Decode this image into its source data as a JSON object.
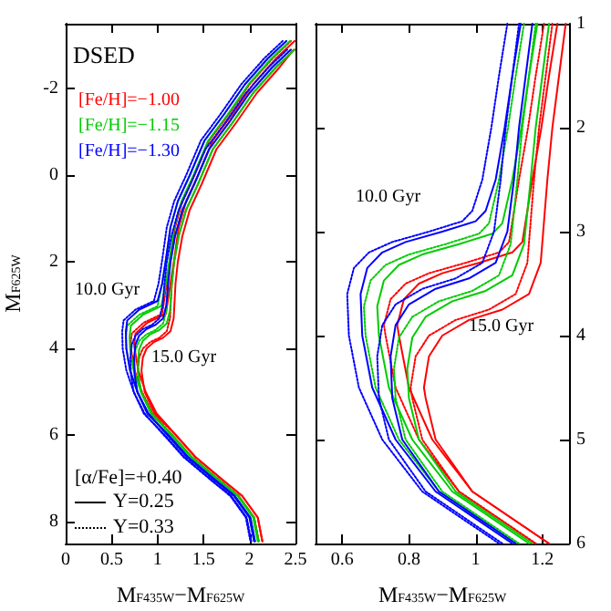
{
  "chart_data": [
    {
      "type": "line",
      "xlabel": "M$_{F435W}$−M$_{F625W}$",
      "ylabel": "M$_{F625W}$",
      "xlim": [
        0,
        2.5
      ],
      "xticks": [
        0,
        0.5,
        1,
        1.5,
        2,
        2.5
      ],
      "ylim": [
        8.5,
        -3.5
      ],
      "yticks": [
        -2,
        0,
        2,
        4,
        6,
        8
      ],
      "legend": "top left",
      "marker": "none",
      "annotations": [
        "DSED",
        "10.0 Gyr",
        "15.0 Gyr",
        "[α/Fe]=+0.40",
        "Y=0.25",
        "Y=0.33"
      ],
      "series": [
        {
          "name": "[Fe/H]=−1.00",
          "color": "#ff0000",
          "line_style": "solid",
          "x": [
            2.49,
            2.29,
            2.04,
            1.81,
            1.6,
            1.44,
            1.31,
            1.23,
            1.18,
            1.14,
            1.09,
            0.89,
            0.76,
            0.745,
            0.75,
            0.79,
            0.87,
            0.99,
            1.2,
            1.41,
            1.69,
            1.92,
            2.09,
            2.14
          ],
          "values": [
            -3.1,
            -2.7,
            -2.1,
            -1.4,
            -0.8,
            0,
            0.6,
            1.2,
            1.95,
            2.5,
            3.2,
            3.4,
            3.65,
            3.9,
            4.0,
            4.5,
            5.0,
            5.5,
            6.0,
            6.5,
            7.0,
            7.4,
            7.9,
            8.45
          ]
        },
        {
          "color": "#ff0000",
          "line_style": "dotted",
          "x": [
            2.45,
            2.25,
            2.0,
            1.77,
            1.56,
            1.4,
            1.27,
            1.19,
            1.14,
            1.1,
            1.05,
            0.85,
            0.72,
            0.705,
            0.71,
            0.75,
            0.83,
            0.95,
            1.16,
            1.37,
            1.65,
            1.88,
            2.05,
            2.1
          ],
          "values": [
            -3.1,
            -2.7,
            -2.1,
            -1.4,
            -0.8,
            0,
            0.6,
            1.2,
            1.95,
            2.5,
            3.2,
            3.4,
            3.65,
            3.9,
            4.0,
            4.5,
            5.0,
            5.5,
            6.0,
            6.5,
            7.0,
            7.4,
            7.9,
            8.45
          ]
        },
        {
          "color": "#ff0000",
          "line_style": "solid",
          "x": [
            2.48,
            2.33,
            2.08,
            1.85,
            1.64,
            1.48,
            1.35,
            1.27,
            1.22,
            1.195,
            1.175,
            1.14,
            1.06,
            0.96,
            0.88,
            0.84,
            0.825,
            0.83,
            0.86,
            0.97,
            1.2,
            1.41,
            1.69,
            1.92,
            2.09,
            2.14
          ],
          "values": [
            -2.9,
            -2.5,
            -1.9,
            -1.2,
            -0.6,
            0.2,
            0.8,
            1.4,
            2.0,
            2.5,
            3.3,
            3.6,
            3.75,
            3.85,
            4.0,
            4.2,
            4.5,
            4.6,
            5.0,
            5.5,
            6.0,
            6.5,
            7.0,
            7.4,
            7.9,
            8.45
          ]
        },
        {
          "color": "#ff0000",
          "line_style": "dotted",
          "x": [
            2.49,
            2.29,
            2.04,
            1.81,
            1.6,
            1.44,
            1.31,
            1.23,
            1.18,
            1.155,
            1.135,
            1.1,
            1.02,
            0.92,
            0.84,
            0.8,
            0.785,
            0.79,
            0.82,
            0.93,
            1.16,
            1.37,
            1.65,
            1.88,
            2.05,
            2.1
          ],
          "values": [
            -2.9,
            -2.5,
            -1.9,
            -1.2,
            -0.6,
            0.2,
            0.8,
            1.4,
            2.0,
            2.5,
            3.3,
            3.6,
            3.75,
            3.85,
            4.0,
            4.2,
            4.5,
            4.6,
            5.0,
            5.5,
            6.0,
            6.5,
            7.0,
            7.4,
            7.9,
            8.45
          ]
        },
        {
          "name": "[Fe/H]=−1.15",
          "color": "#00cc00",
          "line_style": "solid",
          "x": [
            2.44,
            2.24,
            1.99,
            1.76,
            1.55,
            1.39,
            1.26,
            1.18,
            1.13,
            1.09,
            1.04,
            0.84,
            0.71,
            0.695,
            0.7,
            0.74,
            0.82,
            0.94,
            1.15,
            1.36,
            1.64,
            1.87,
            2.04,
            2.09
          ],
          "values": [
            -3.1,
            -2.7,
            -2.1,
            -1.4,
            -0.8,
            0,
            0.6,
            1.2,
            1.95,
            2.5,
            3.02,
            3.22,
            3.47,
            3.72,
            4.0,
            4.5,
            5.0,
            5.5,
            6.0,
            6.5,
            7.0,
            7.4,
            7.9,
            8.45
          ]
        },
        {
          "color": "#00cc00",
          "line_style": "dotted",
          "x": [
            2.4,
            2.2,
            1.95,
            1.72,
            1.51,
            1.35,
            1.22,
            1.14,
            1.09,
            1.05,
            1.0,
            0.8,
            0.67,
            0.655,
            0.66,
            0.7,
            0.78,
            0.9,
            1.11,
            1.32,
            1.6,
            1.83,
            2.0,
            2.05
          ],
          "values": [
            -3.1,
            -2.7,
            -2.1,
            -1.4,
            -0.8,
            0,
            0.6,
            1.2,
            1.95,
            2.5,
            3.02,
            3.22,
            3.47,
            3.72,
            4.0,
            4.5,
            5.0,
            5.5,
            6.0,
            6.5,
            7.0,
            7.4,
            7.9,
            8.45
          ]
        },
        {
          "color": "#00cc00",
          "line_style": "solid",
          "x": [
            2.49,
            2.29,
            2.04,
            1.81,
            1.6,
            1.44,
            1.31,
            1.23,
            1.18,
            1.155,
            1.135,
            1.1,
            1.02,
            0.92,
            0.84,
            0.8,
            0.785,
            0.79,
            0.82,
            0.93,
            1.16,
            1.37,
            1.65,
            1.88,
            2.05,
            2.1
          ],
          "values": [
            -2.9,
            -2.5,
            -1.9,
            -1.2,
            -0.6,
            0.2,
            0.8,
            1.4,
            2.0,
            2.5,
            3.12,
            3.42,
            3.57,
            3.67,
            3.82,
            4.02,
            4.32,
            4.6,
            5.0,
            5.5,
            6.0,
            6.5,
            7.0,
            7.4,
            7.9,
            8.45
          ]
        },
        {
          "color": "#00cc00",
          "line_style": "dotted",
          "x": [
            2.45,
            2.25,
            2.0,
            1.77,
            1.56,
            1.4,
            1.27,
            1.19,
            1.14,
            1.115,
            1.095,
            1.06,
            0.98,
            0.88,
            0.8,
            0.76,
            0.745,
            0.75,
            0.78,
            0.89,
            1.12,
            1.33,
            1.61,
            1.84,
            2.01,
            2.06
          ],
          "values": [
            -2.9,
            -2.5,
            -1.9,
            -1.2,
            -0.6,
            0.2,
            0.8,
            1.4,
            2.0,
            2.5,
            3.12,
            3.42,
            3.57,
            3.67,
            3.82,
            4.02,
            4.32,
            4.6,
            5.0,
            5.5,
            6.0,
            6.5,
            7.0,
            7.4,
            7.9,
            8.45
          ]
        },
        {
          "name": "[Fe/H]=−1.30",
          "color": "#0000ff",
          "line_style": "solid",
          "x": [
            2.4,
            2.2,
            1.95,
            1.72,
            1.51,
            1.35,
            1.22,
            1.14,
            1.09,
            1.05,
            1.0,
            0.8,
            0.67,
            0.655,
            0.66,
            0.7,
            0.78,
            0.9,
            1.11,
            1.32,
            1.6,
            1.83,
            2.0,
            2.05
          ],
          "values": [
            -3.1,
            -2.7,
            -2.1,
            -1.4,
            -0.8,
            0,
            0.6,
            1.2,
            1.95,
            2.5,
            2.9,
            3.1,
            3.35,
            3.6,
            4.0,
            4.5,
            5.0,
            5.5,
            6.0,
            6.5,
            7.0,
            7.4,
            7.9,
            8.45
          ]
        },
        {
          "color": "#0000ff",
          "line_style": "dotted",
          "x": [
            2.36,
            2.16,
            1.91,
            1.68,
            1.47,
            1.31,
            1.18,
            1.1,
            1.05,
            1.01,
            0.96,
            0.76,
            0.63,
            0.615,
            0.62,
            0.66,
            0.74,
            0.86,
            1.07,
            1.28,
            1.56,
            1.79,
            1.96,
            2.01
          ],
          "values": [
            -3.1,
            -2.7,
            -2.1,
            -1.4,
            -0.8,
            0,
            0.6,
            1.2,
            1.95,
            2.5,
            2.9,
            3.1,
            3.35,
            3.6,
            4.0,
            4.5,
            5.0,
            5.5,
            6.0,
            6.5,
            7.0,
            7.4,
            7.9,
            8.45
          ]
        },
        {
          "color": "#0000ff",
          "line_style": "solid",
          "x": [
            2.45,
            2.25,
            2.0,
            1.77,
            1.56,
            1.4,
            1.27,
            1.19,
            1.14,
            1.115,
            1.095,
            1.06,
            0.98,
            0.88,
            0.8,
            0.76,
            0.745,
            0.75,
            0.78,
            0.89,
            1.12,
            1.33,
            1.61,
            1.84,
            2.01,
            2.06
          ],
          "values": [
            -2.9,
            -2.5,
            -1.9,
            -1.2,
            -0.6,
            0.2,
            0.8,
            1.4,
            2.0,
            2.5,
            3.0,
            3.3,
            3.45,
            3.55,
            3.7,
            3.9,
            4.2,
            4.6,
            5.0,
            5.5,
            6.0,
            6.5,
            7.0,
            7.4,
            7.9,
            8.45
          ]
        },
        {
          "color": "#0000ff",
          "line_style": "dotted",
          "x": [
            2.41,
            2.21,
            1.96,
            1.73,
            1.52,
            1.36,
            1.23,
            1.15,
            1.1,
            1.075,
            1.055,
            1.02,
            0.94,
            0.84,
            0.76,
            0.72,
            0.705,
            0.71,
            0.74,
            0.85,
            1.08,
            1.29,
            1.57,
            1.8,
            1.97,
            2.02
          ],
          "values": [
            -2.9,
            -2.5,
            -1.9,
            -1.2,
            -0.6,
            0.2,
            0.8,
            1.4,
            2.0,
            2.5,
            3.0,
            3.3,
            3.45,
            3.55,
            3.7,
            3.9,
            4.2,
            4.6,
            5.0,
            5.5,
            6.0,
            6.5,
            7.0,
            7.4,
            7.9,
            8.45
          ]
        }
      ]
    },
    {
      "type": "line",
      "xlabel": "M$_{F435W}$−M$_{F625W}$",
      "xlim": [
        0.52,
        1.28
      ],
      "xticks": [
        0.6,
        0.8,
        1,
        1.2
      ],
      "ylim": [
        6,
        1
      ],
      "yticks": [
        1,
        2,
        3,
        4,
        5,
        6
      ],
      "marker": "none",
      "annotations": [
        "10.0 Gyr",
        "15.0 Gyr"
      ],
      "series": [
        {
          "color": "#ff0000",
          "line_style": "solid",
          "x": [
            1.245,
            1.22,
            1.197,
            1.17,
            1.14,
            1.11,
            1.01,
            0.9,
            0.83,
            0.785,
            0.765,
            0.77,
            0.8,
            0.87,
            0.99,
            1.22
          ],
          "values": [
            1,
            1.5,
            2,
            2.5,
            3.1,
            3.2,
            3.3,
            3.4,
            3.5,
            3.65,
            3.9,
            4.0,
            4.5,
            5.0,
            5.5,
            6.0
          ]
        },
        {
          "color": "#ff0000",
          "line_style": "dotted",
          "x": [
            1.205,
            1.18,
            1.157,
            1.13,
            1.1,
            1.07,
            0.97,
            0.86,
            0.79,
            0.745,
            0.725,
            0.73,
            0.76,
            0.83,
            0.95,
            1.18
          ],
          "values": [
            1,
            1.5,
            2,
            2.5,
            3.1,
            3.2,
            3.3,
            3.4,
            3.5,
            3.65,
            3.9,
            4.0,
            4.5,
            5.0,
            5.5,
            6.0
          ]
        },
        {
          "color": "#ff0000",
          "line_style": "solid",
          "x": [
            1.27,
            1.25,
            1.23,
            1.215,
            1.195,
            1.16,
            1.08,
            0.98,
            0.9,
            0.86,
            0.845,
            0.85,
            0.88,
            0.99,
            1.22
          ],
          "values": [
            1,
            1.5,
            2,
            2.5,
            3.3,
            3.6,
            3.75,
            3.85,
            4.0,
            4.2,
            4.5,
            4.6,
            5.0,
            5.5,
            6.0
          ]
        },
        {
          "color": "#ff0000",
          "line_style": "dotted",
          "x": [
            1.23,
            1.21,
            1.19,
            1.175,
            1.155,
            1.12,
            1.04,
            0.94,
            0.86,
            0.82,
            0.805,
            0.81,
            0.84,
            0.95,
            1.18
          ],
          "values": [
            1,
            1.5,
            2,
            2.5,
            3.3,
            3.6,
            3.75,
            3.85,
            4.0,
            4.2,
            4.5,
            4.6,
            5.0,
            5.5,
            6.0
          ]
        },
        {
          "color": "#00cc00",
          "line_style": "solid",
          "x": [
            1.185,
            1.16,
            1.137,
            1.11,
            1.08,
            1.05,
            0.95,
            0.84,
            0.77,
            0.725,
            0.705,
            0.71,
            0.74,
            0.81,
            0.93,
            1.16
          ],
          "values": [
            1,
            1.5,
            2,
            2.5,
            2.92,
            3.02,
            3.12,
            3.22,
            3.32,
            3.47,
            3.72,
            4.0,
            4.5,
            5.0,
            5.5,
            6.0
          ]
        },
        {
          "color": "#00cc00",
          "line_style": "dotted",
          "x": [
            1.145,
            1.12,
            1.097,
            1.07,
            1.04,
            1.01,
            0.91,
            0.8,
            0.73,
            0.685,
            0.665,
            0.67,
            0.7,
            0.77,
            0.89,
            1.12
          ],
          "values": [
            1,
            1.5,
            2,
            2.5,
            2.92,
            3.02,
            3.12,
            3.22,
            3.32,
            3.47,
            3.72,
            4.0,
            4.5,
            5.0,
            5.5,
            6.0
          ]
        },
        {
          "color": "#00cc00",
          "line_style": "solid",
          "x": [
            1.22,
            1.2,
            1.18,
            1.165,
            1.145,
            1.11,
            1.03,
            0.93,
            0.85,
            0.81,
            0.795,
            0.8,
            0.83,
            0.94,
            1.17
          ],
          "values": [
            1,
            1.5,
            2,
            2.5,
            3.12,
            3.42,
            3.57,
            3.67,
            3.82,
            4.02,
            4.32,
            4.6,
            5.0,
            5.5,
            6.0
          ]
        },
        {
          "color": "#00cc00",
          "line_style": "dotted",
          "x": [
            1.18,
            1.16,
            1.14,
            1.125,
            1.105,
            1.07,
            0.99,
            0.89,
            0.81,
            0.77,
            0.755,
            0.76,
            0.79,
            0.9,
            1.13
          ],
          "values": [
            1,
            1.5,
            2,
            2.5,
            3.12,
            3.42,
            3.57,
            3.67,
            3.82,
            4.02,
            4.32,
            4.6,
            5.0,
            5.5,
            6.0
          ]
        },
        {
          "color": "#0000ff",
          "line_style": "solid",
          "x": [
            1.135,
            1.11,
            1.087,
            1.06,
            1.03,
            1.0,
            0.9,
            0.79,
            0.72,
            0.675,
            0.655,
            0.66,
            0.69,
            0.76,
            0.88,
            1.11
          ],
          "values": [
            1,
            1.5,
            2,
            2.5,
            2.8,
            2.9,
            3.0,
            3.1,
            3.2,
            3.35,
            3.6,
            4.0,
            4.5,
            5.0,
            5.5,
            6.0
          ]
        },
        {
          "color": "#0000ff",
          "line_style": "dotted",
          "x": [
            1.095,
            1.07,
            1.047,
            1.02,
            0.99,
            0.96,
            0.86,
            0.75,
            0.68,
            0.635,
            0.615,
            0.62,
            0.65,
            0.72,
            0.84,
            1.07
          ],
          "values": [
            1,
            1.5,
            2,
            2.5,
            2.8,
            2.9,
            3.0,
            3.1,
            3.2,
            3.35,
            3.6,
            4.0,
            4.5,
            5.0,
            5.5,
            6.0
          ]
        },
        {
          "color": "#0000ff",
          "line_style": "solid",
          "x": [
            1.17,
            1.15,
            1.13,
            1.115,
            1.095,
            1.06,
            0.98,
            0.88,
            0.8,
            0.76,
            0.745,
            0.75,
            0.78,
            0.89,
            1.12
          ],
          "values": [
            1,
            1.5,
            2,
            2.5,
            3.0,
            3.3,
            3.45,
            3.55,
            3.7,
            3.9,
            4.2,
            4.6,
            5.0,
            5.5,
            6.0
          ]
        },
        {
          "color": "#0000ff",
          "line_style": "dotted",
          "x": [
            1.13,
            1.11,
            1.09,
            1.075,
            1.055,
            1.02,
            0.94,
            0.84,
            0.76,
            0.72,
            0.705,
            0.71,
            0.74,
            0.85,
            1.08
          ],
          "values": [
            1,
            1.5,
            2,
            2.5,
            3.0,
            3.3,
            3.45,
            3.55,
            3.7,
            3.9,
            4.2,
            4.6,
            5.0,
            5.5,
            6.0
          ]
        }
      ]
    }
  ]
}
